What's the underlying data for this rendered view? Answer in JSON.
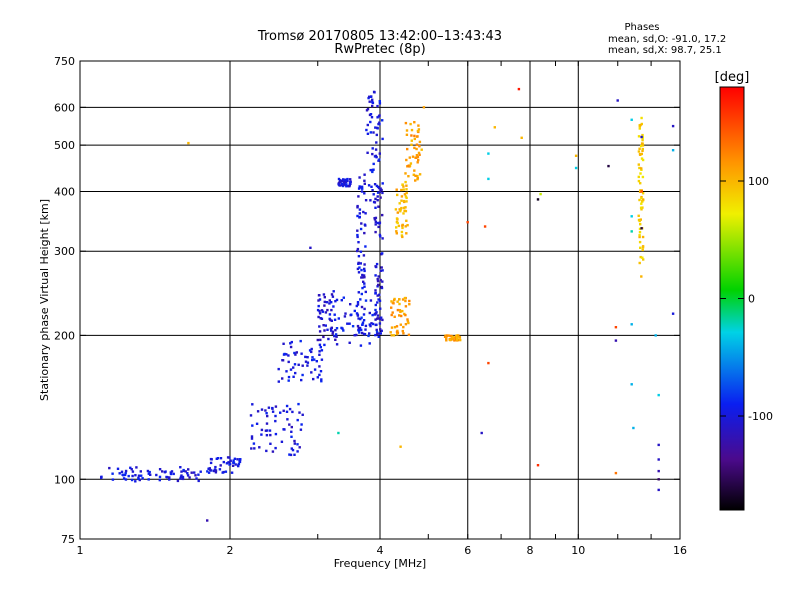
{
  "chart_data": {
    "type": "scatter",
    "title": "Tromsø 20170805 13:42:00–13:43:43",
    "subtitle": "RwPretec (8p)",
    "xlabel": "Frequency [MHz]",
    "ylabel": "Stationary phase Virtual Height [km]",
    "x_scale": "log",
    "y_scale": "log",
    "xlim": [
      1,
      16
    ],
    "ylim": [
      75,
      750
    ],
    "x_ticks": [
      "1",
      "2",
      "4",
      "6",
      "8",
      "10",
      "16"
    ],
    "y_ticks": [
      "75",
      "100",
      "200",
      "300",
      "400",
      "500",
      "600",
      "750"
    ],
    "grid": true,
    "phase_stats": {
      "title": "Phases",
      "line_o": "mean, sd,O: -91.0, 17.2",
      "line_x": "mean, sd,X:  98.7, 25.1"
    },
    "colorbar": {
      "label": "[deg]",
      "min": -180,
      "max": 180,
      "ticks": [
        "100",
        "0",
        "-100"
      ],
      "tick_values": [
        100,
        0,
        -100
      ]
    },
    "clusters": [
      {
        "f": [
          1.1,
          1.75
        ],
        "h": [
          99,
          106
        ],
        "phase": -100
      },
      {
        "f": [
          1.8,
          2.1
        ],
        "h": [
          103,
          112
        ],
        "phase": -100
      },
      {
        "f": [
          2.2,
          2.8
        ],
        "h": [
          112,
          145
        ],
        "phase": -100
      },
      {
        "f": [
          2.5,
          3.1
        ],
        "h": [
          160,
          195
        ],
        "phase": -100
      },
      {
        "f": [
          3.0,
          3.3
        ],
        "h": [
          195,
          250
        ],
        "phase": -105
      },
      {
        "f": [
          3.2,
          4.0
        ],
        "h": [
          190,
          240
        ],
        "phase": -95
      },
      {
        "f": [
          3.6,
          3.75
        ],
        "h": [
          200,
          440
        ],
        "phase": -100
      },
      {
        "f": [
          3.75,
          4.05
        ],
        "h": [
          380,
          650
        ],
        "phase": -100
      },
      {
        "f": [
          3.9,
          4.05
        ],
        "h": [
          200,
          420
        ],
        "phase": -105
      },
      {
        "f": [
          3.3,
          3.5
        ],
        "h": [
          410,
          425
        ],
        "phase": -100
      },
      {
        "f": [
          4.3,
          4.55
        ],
        "h": [
          320,
          420
        ],
        "phase": 100
      },
      {
        "f": [
          4.5,
          4.85
        ],
        "h": [
          420,
          560
        ],
        "phase": 110
      },
      {
        "f": [
          4.2,
          4.6
        ],
        "h": [
          200,
          240
        ],
        "phase": 110
      },
      {
        "f": [
          5.4,
          5.8
        ],
        "h": [
          195,
          200
        ],
        "phase": 110
      },
      {
        "f": [
          13.2,
          13.5
        ],
        "h": [
          265,
          560
        ],
        "phase": 90
      }
    ],
    "isolated_points": [
      {
        "x": 1.65,
        "y": 505,
        "phase": 100
      },
      {
        "x": 1.8,
        "y": 82,
        "phase": -120
      },
      {
        "x": 2.9,
        "y": 305,
        "phase": -110
      },
      {
        "x": 3.3,
        "y": 125,
        "phase": -20
      },
      {
        "x": 4.4,
        "y": 117,
        "phase": 100
      },
      {
        "x": 4.9,
        "y": 600,
        "phase": 110
      },
      {
        "x": 6.0,
        "y": 345,
        "phase": 150
      },
      {
        "x": 6.4,
        "y": 125,
        "phase": -110
      },
      {
        "x": 6.5,
        "y": 338,
        "phase": 150
      },
      {
        "x": 6.6,
        "y": 480,
        "phase": -30
      },
      {
        "x": 6.6,
        "y": 425,
        "phase": -30
      },
      {
        "x": 6.6,
        "y": 175,
        "phase": 150
      },
      {
        "x": 6.8,
        "y": 545,
        "phase": 100
      },
      {
        "x": 7.6,
        "y": 655,
        "phase": 170
      },
      {
        "x": 7.7,
        "y": 518,
        "phase": 100
      },
      {
        "x": 8.3,
        "y": 385,
        "phase": -170
      },
      {
        "x": 8.3,
        "y": 107,
        "phase": 160
      },
      {
        "x": 8.4,
        "y": 395,
        "phase": 60
      },
      {
        "x": 9.9,
        "y": 475,
        "phase": 100
      },
      {
        "x": 9.9,
        "y": 448,
        "phase": -30
      },
      {
        "x": 11.5,
        "y": 452,
        "phase": -160
      },
      {
        "x": 11.9,
        "y": 195,
        "phase": -120
      },
      {
        "x": 11.9,
        "y": 208,
        "phase": 150
      },
      {
        "x": 11.9,
        "y": 103,
        "phase": 130
      },
      {
        "x": 12.0,
        "y": 620,
        "phase": -110
      },
      {
        "x": 12.8,
        "y": 565,
        "phase": -30
      },
      {
        "x": 12.8,
        "y": 355,
        "phase": -30
      },
      {
        "x": 12.8,
        "y": 330,
        "phase": -20
      },
      {
        "x": 12.8,
        "y": 211,
        "phase": -40
      },
      {
        "x": 12.8,
        "y": 158,
        "phase": -40
      },
      {
        "x": 12.9,
        "y": 128,
        "phase": -40
      },
      {
        "x": 13.4,
        "y": 570,
        "phase": 80
      },
      {
        "x": 13.4,
        "y": 520,
        "phase": -110
      },
      {
        "x": 13.4,
        "y": 400,
        "phase": 150
      },
      {
        "x": 13.4,
        "y": 335,
        "phase": -160
      },
      {
        "x": 14.3,
        "y": 200,
        "phase": -40
      },
      {
        "x": 14.5,
        "y": 150,
        "phase": -30
      },
      {
        "x": 14.5,
        "y": 118,
        "phase": -110
      },
      {
        "x": 14.5,
        "y": 110,
        "phase": -110
      },
      {
        "x": 14.5,
        "y": 104,
        "phase": -120
      },
      {
        "x": 14.5,
        "y": 100,
        "phase": -150
      },
      {
        "x": 14.5,
        "y": 95,
        "phase": -110
      },
      {
        "x": 15.5,
        "y": 548,
        "phase": -110
      },
      {
        "x": 15.5,
        "y": 488,
        "phase": -40
      },
      {
        "x": 15.5,
        "y": 222,
        "phase": -100
      }
    ]
  }
}
